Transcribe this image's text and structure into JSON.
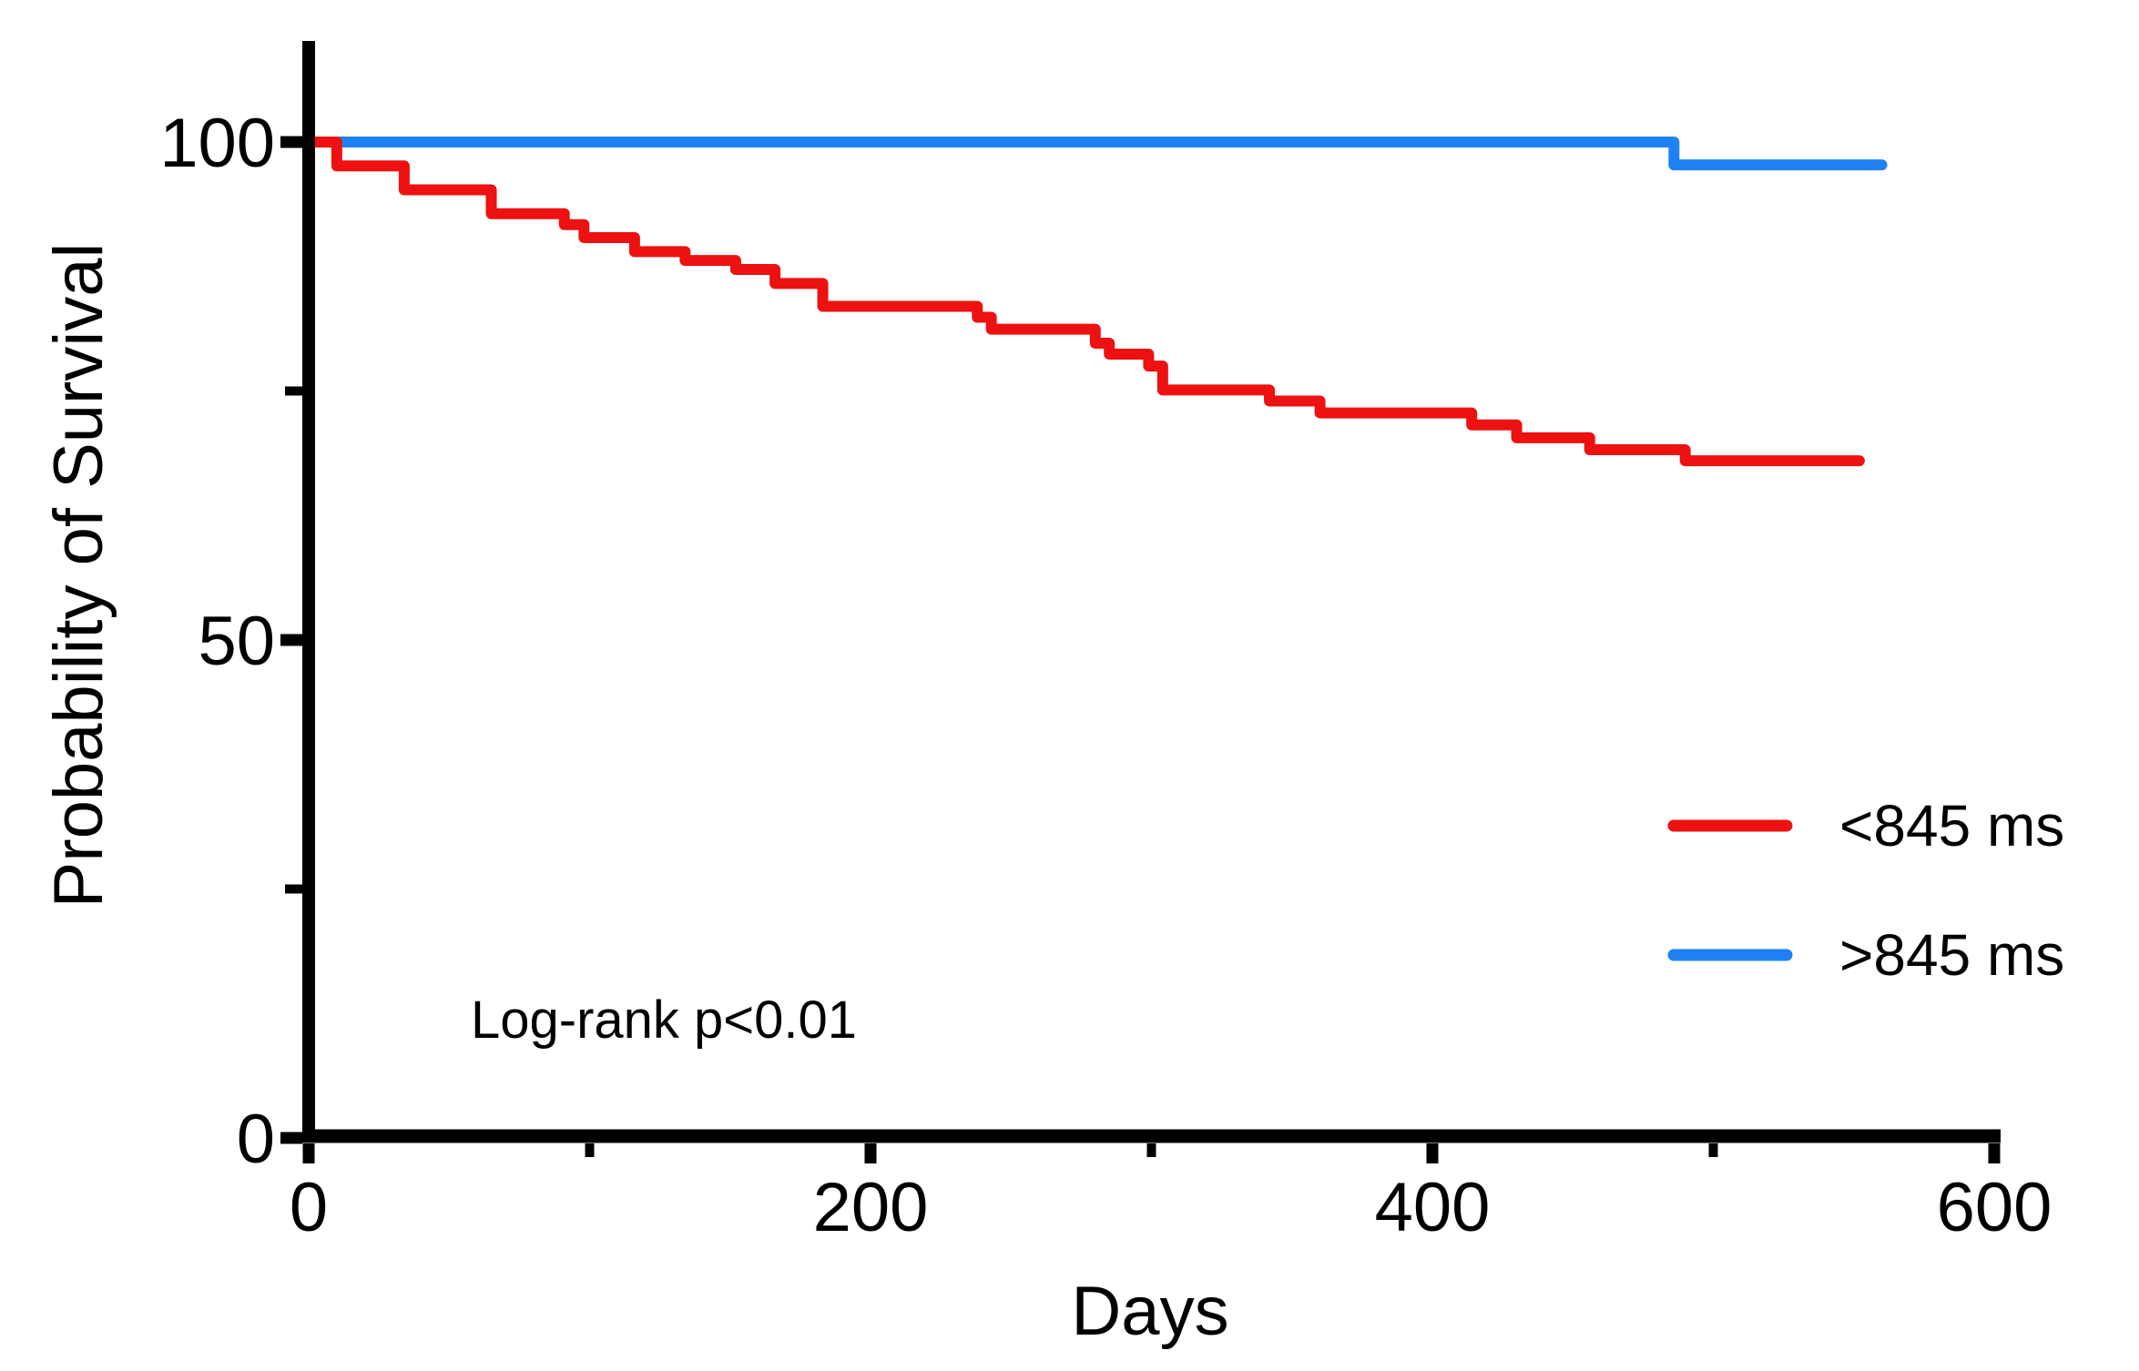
{
  "colors": {
    "series_red": "#EE1111",
    "series_blue": "#1E82F5",
    "axis": "#000000",
    "background": "#FFFFFF"
  },
  "chart_data": {
    "type": "line",
    "subtype": "kaplan-meier-step",
    "title": "",
    "xlabel": "Days",
    "ylabel": "Probability of Survival",
    "annotation": "Log-rank p<0.01",
    "xlim": [
      0,
      600
    ],
    "ylim": [
      0,
      100
    ],
    "x_major_ticks": [
      0,
      200,
      400,
      600
    ],
    "x_minor_ticks": [
      100,
      300,
      500
    ],
    "y_major_ticks": [
      0,
      50,
      100
    ],
    "y_minor_ticks": [
      25,
      75
    ],
    "grid": "off",
    "legend_position": "right-middle",
    "series": [
      {
        "name": "<845 ms",
        "color": "#EE1111",
        "points": [
          [
            0,
            100
          ],
          [
            10,
            97.6
          ],
          [
            34,
            95.2
          ],
          [
            65,
            92.8
          ],
          [
            91,
            91.7
          ],
          [
            98,
            90.4
          ],
          [
            116,
            89.0
          ],
          [
            134,
            88.1
          ],
          [
            152,
            87.2
          ],
          [
            166,
            85.8
          ],
          [
            183,
            83.5
          ],
          [
            238,
            82.4
          ],
          [
            243,
            81.2
          ],
          [
            280,
            79.8
          ],
          [
            285,
            78.7
          ],
          [
            299,
            77.5
          ],
          [
            304,
            75.1
          ],
          [
            342,
            74.0
          ],
          [
            360,
            72.8
          ],
          [
            414,
            71.6
          ],
          [
            430,
            70.3
          ],
          [
            456,
            69.1
          ],
          [
            490,
            68.0
          ]
        ],
        "end_day": 552
      },
      {
        "name": ">845 ms",
        "color": "#1E82F5",
        "points": [
          [
            0,
            100
          ],
          [
            486,
            97.7
          ]
        ],
        "end_day": 560
      }
    ]
  }
}
